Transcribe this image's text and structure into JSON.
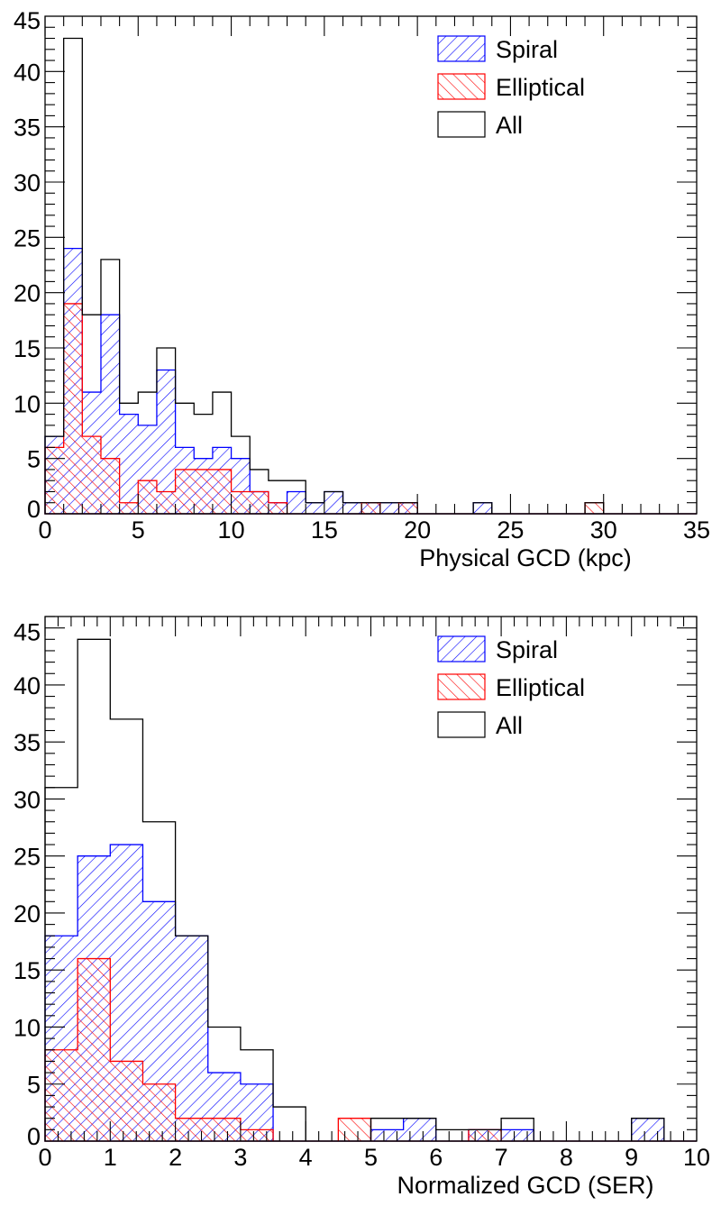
{
  "chart_data": [
    {
      "type": "bar",
      "histogram": true,
      "xlabel": "Physical GCD (kpc)",
      "ylabel": "",
      "xlim": [
        0,
        35
      ],
      "ylim": [
        0,
        45
      ],
      "xticks": [
        0,
        5,
        10,
        15,
        20,
        25,
        30,
        35
      ],
      "yticks": [
        0,
        5,
        10,
        15,
        20,
        25,
        30,
        35,
        40,
        45
      ],
      "xtick_labels": [
        "0",
        "5",
        "10",
        "15",
        "20",
        "25",
        "30",
        "35"
      ],
      "ytick_labels": [
        "0",
        "5",
        "10",
        "15",
        "20",
        "25",
        "30",
        "35",
        "40",
        "45"
      ],
      "legend_position": "top-right",
      "bin_edges": [
        0,
        1,
        2,
        3,
        4,
        5,
        6,
        7,
        8,
        9,
        10,
        11,
        12,
        13,
        14,
        15,
        16,
        17,
        18,
        19,
        20,
        21,
        22,
        23,
        24,
        25,
        26,
        27,
        28,
        29,
        30,
        31,
        32,
        33,
        34,
        35
      ],
      "series": [
        {
          "name": "Spiral",
          "color": "#0000ff",
          "hatch": "diagonal",
          "values": [
            7,
            24,
            11,
            18,
            9,
            8,
            13,
            6,
            5,
            6,
            5,
            2,
            1,
            2,
            1,
            2,
            1,
            1,
            1,
            1,
            0,
            0,
            0,
            1,
            0,
            0,
            0,
            0,
            0,
            0,
            0,
            0,
            0,
            0,
            0
          ]
        },
        {
          "name": "Elliptical",
          "color": "#ff0000",
          "hatch": "crosshatch",
          "values": [
            6,
            19,
            7,
            5,
            1,
            3,
            2,
            4,
            4,
            4,
            2,
            2,
            1,
            0,
            0,
            0,
            0,
            1,
            0,
            1,
            0,
            0,
            0,
            0,
            0,
            0,
            0,
            0,
            0,
            1,
            0,
            0,
            0,
            0,
            0
          ]
        },
        {
          "name": "All",
          "color": "#000000",
          "hatch": "none",
          "values": [
            7,
            43,
            18,
            23,
            10,
            11,
            15,
            10,
            9,
            11,
            7,
            4,
            3,
            3,
            1,
            2,
            1,
            1,
            1,
            1,
            0,
            0,
            0,
            1,
            0,
            0,
            0,
            0,
            0,
            1,
            0,
            0,
            0,
            0,
            0
          ]
        }
      ]
    },
    {
      "type": "bar",
      "histogram": true,
      "xlabel": "Normalized GCD (SER)",
      "ylabel": "",
      "xlim": [
        0,
        10
      ],
      "ylim": [
        0,
        46
      ],
      "xticks": [
        0,
        1,
        2,
        3,
        4,
        5,
        6,
        7,
        8,
        9,
        10
      ],
      "yticks": [
        0,
        5,
        10,
        15,
        20,
        25,
        30,
        35,
        40,
        45
      ],
      "xtick_labels": [
        "0",
        "1",
        "2",
        "3",
        "4",
        "5",
        "6",
        "7",
        "8",
        "9",
        "10"
      ],
      "ytick_labels": [
        "0",
        "5",
        "10",
        "15",
        "20",
        "25",
        "30",
        "35",
        "40",
        "45"
      ],
      "legend_position": "top-right",
      "bin_edges": [
        0,
        0.5,
        1,
        1.5,
        2,
        2.5,
        3,
        3.5,
        4,
        4.5,
        5,
        5.5,
        6,
        6.5,
        7,
        7.5,
        8,
        8.5,
        9,
        9.5,
        10
      ],
      "series": [
        {
          "name": "Spiral",
          "color": "#0000ff",
          "hatch": "diagonal",
          "values": [
            18,
            25,
            26,
            21,
            18,
            6,
            5,
            0,
            0,
            0,
            1,
            2,
            0,
            1,
            1,
            0,
            0,
            0,
            2,
            0
          ]
        },
        {
          "name": "Elliptical",
          "color": "#ff0000",
          "hatch": "crosshatch",
          "values": [
            8,
            16,
            7,
            5,
            2,
            2,
            1,
            0,
            0,
            2,
            0,
            0,
            0,
            1,
            0,
            0,
            0,
            0,
            0,
            0
          ]
        },
        {
          "name": "All",
          "color": "#000000",
          "hatch": "none",
          "values": [
            31,
            44,
            37,
            28,
            18,
            10,
            8,
            3,
            0,
            0,
            2,
            2,
            1,
            1,
            2,
            0,
            0,
            0,
            2,
            0
          ]
        }
      ]
    }
  ]
}
